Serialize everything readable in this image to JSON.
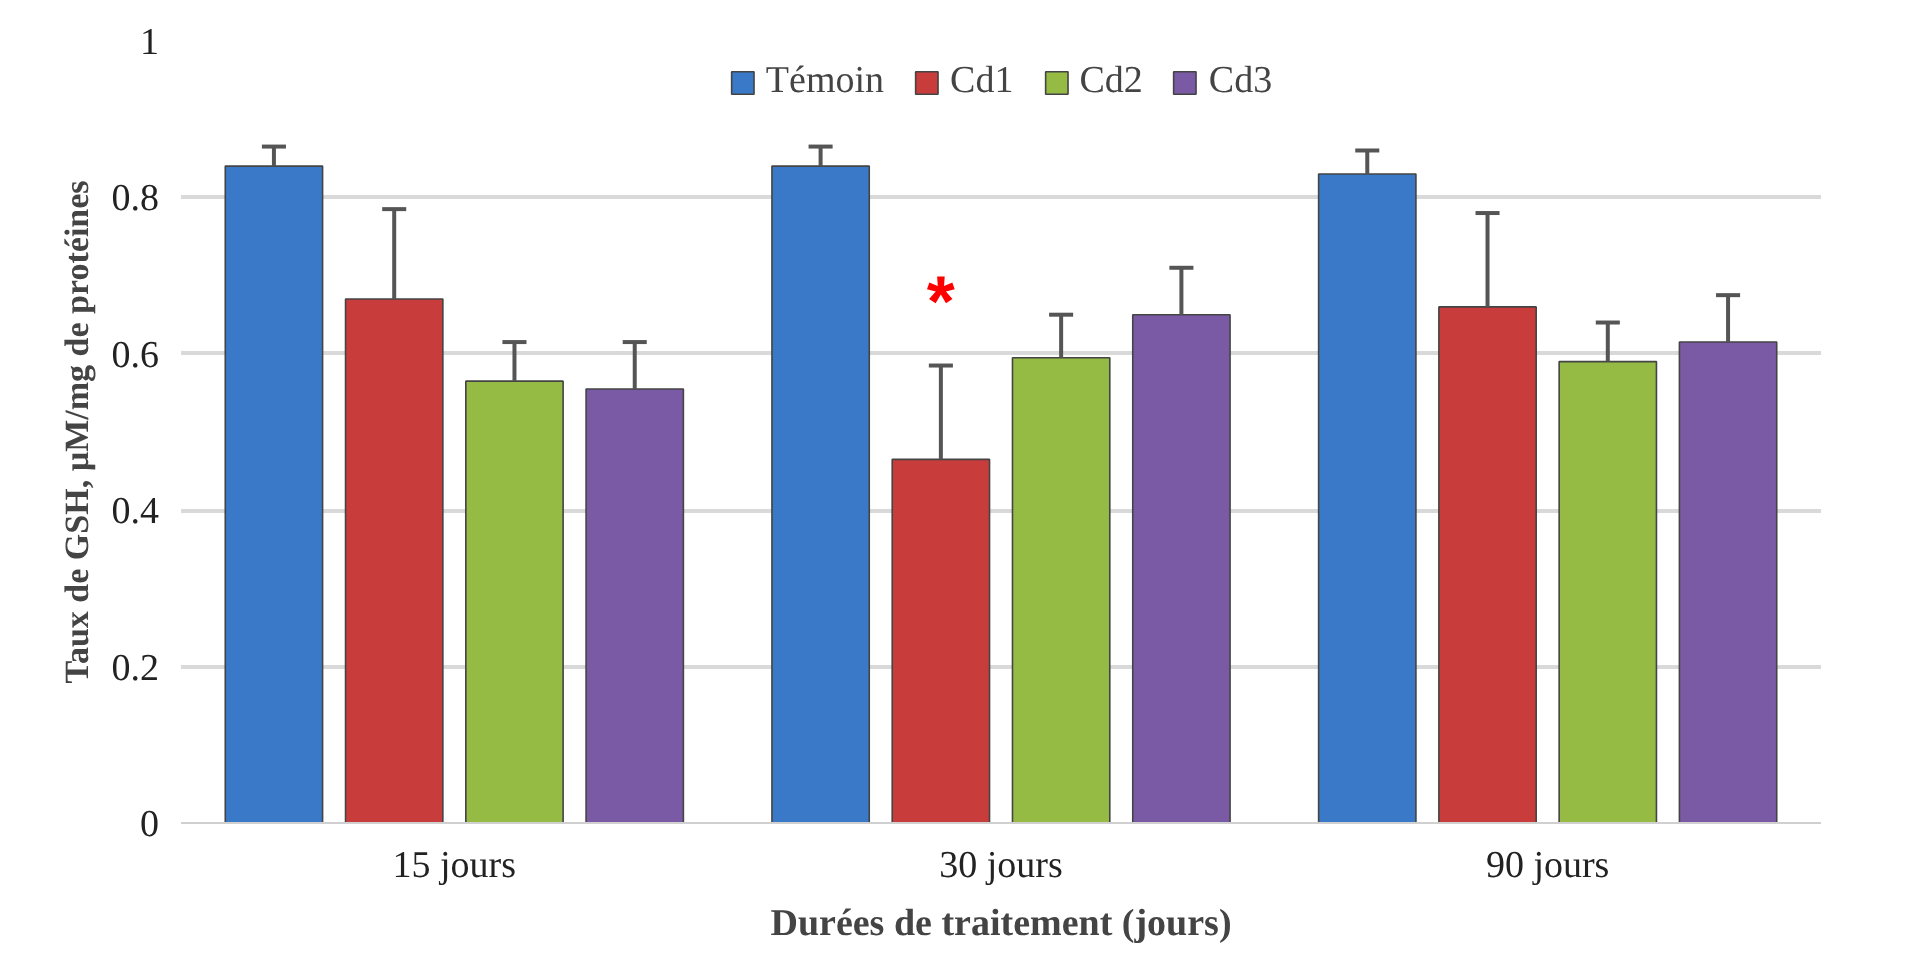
{
  "chart_data": {
    "type": "bar",
    "xlabel": "Durées de traitement (jours)",
    "ylabel": "Taux de GSH, µM/mg de protéines",
    "categories": [
      "15 jours",
      "30 jours",
      "90 jours"
    ],
    "ylim": [
      0,
      1
    ],
    "yticks": [
      0,
      0.2,
      0.4,
      0.6,
      0.8,
      1
    ],
    "grid": "y",
    "legend": "top",
    "series": [
      {
        "name": "Témoin",
        "color": "#3a78c8",
        "values": [
          0.84,
          0.84,
          0.83
        ],
        "errors": [
          [
            0.84,
            0.865
          ],
          [
            0.84,
            0.865
          ],
          [
            0.83,
            0.86
          ]
        ]
      },
      {
        "name": "Cd1",
        "color": "#c83c3c",
        "values": [
          0.67,
          0.465,
          0.66
        ],
        "errors": [
          [
            0.67,
            0.785
          ],
          [
            0.465,
            0.585
          ],
          [
            0.66,
            0.78
          ]
        ],
        "value_labels": [
          null,
          "*",
          null
        ]
      },
      {
        "name": "Cd2",
        "color": "#95bb45",
        "values": [
          0.565,
          0.595,
          0.59
        ],
        "errors": [
          [
            0.565,
            0.615
          ],
          [
            0.595,
            0.65
          ],
          [
            0.59,
            0.64
          ]
        ]
      },
      {
        "name": "Cd3",
        "color": "#7a5aa5",
        "values": [
          0.555,
          0.65,
          0.615
        ],
        "errors": [
          [
            0.555,
            0.615
          ],
          [
            0.65,
            0.71
          ],
          [
            0.615,
            0.675
          ]
        ]
      }
    ]
  }
}
